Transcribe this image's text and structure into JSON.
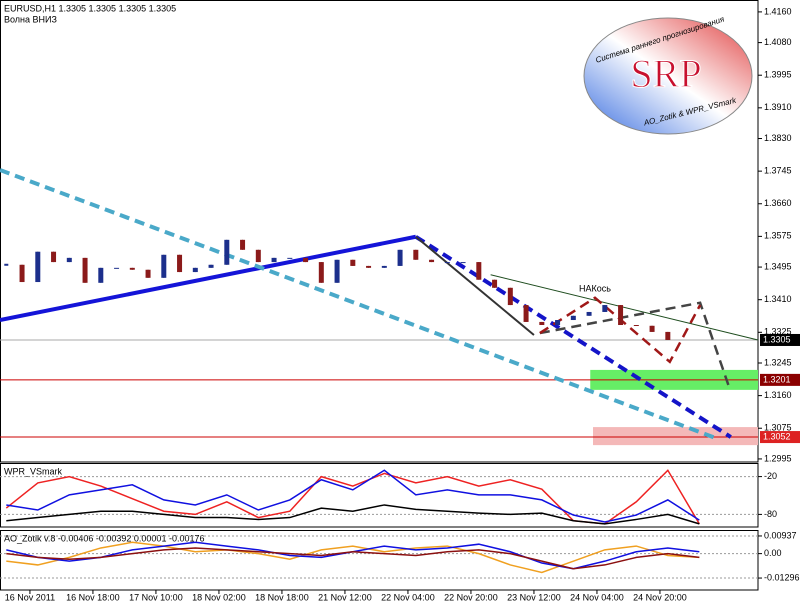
{
  "logo": {
    "arc": "Система раннего прогнозирования",
    "name": "SRP",
    "credit": "AO_Zotik & WPR_VSmark"
  },
  "chart_data": [
    {
      "type": "candlestick",
      "title": "EURUSD,H1  1.3305 1.3305 1.3305 1.3305",
      "subtitle": "Волна ВНИЗ",
      "xlim": [
        -7.6,
        184.9
      ],
      "ylim": [
        1.2987,
        1.4191
      ],
      "xticks": [
        {
          "value": 0,
          "label": "16 Nov 2011"
        },
        {
          "value": 16,
          "label": "16 Nov 18:00"
        },
        {
          "value": 32,
          "label": "17 Nov 10:00"
        },
        {
          "value": 48,
          "label": "18 Nov 02:00"
        },
        {
          "value": 64,
          "label": "18 Nov 18:00"
        },
        {
          "value": 80,
          "label": "21 Nov 12:00"
        },
        {
          "value": 96,
          "label": "22 Nov 04:00"
        },
        {
          "value": 112,
          "label": "22 Nov 20:00"
        },
        {
          "value": 128,
          "label": "23 Nov 12:00"
        },
        {
          "value": 144,
          "label": "24 Nov 04:00"
        },
        {
          "value": 160,
          "label": "24 Nov 20:00"
        }
      ],
      "yticks": [
        {
          "value": 1.416,
          "label": "1.4160"
        },
        {
          "value": 1.408,
          "label": "1.4080"
        },
        1.3995,
        {
          "value": 1.391,
          "label": "1.3910"
        },
        {
          "value": 1.383,
          "label": "1.3830"
        },
        1.3745,
        {
          "value": 1.366,
          "label": "1.3660"
        },
        1.3575,
        1.3495,
        {
          "value": 1.341,
          "label": "1.3410"
        },
        1.3325,
        1.3245,
        {
          "value": 1.316,
          "label": "1.3160"
        },
        1.3075,
        1.2995
      ],
      "up_color": "#1c2f8c",
      "down_color": "#8b1a1a",
      "x": [
        -6,
        -2,
        2,
        6,
        10,
        14,
        18,
        22,
        26,
        30,
        34,
        38,
        42,
        46,
        50,
        54,
        58,
        62,
        66,
        70,
        74,
        78,
        82,
        86,
        90,
        94,
        98,
        102,
        106,
        110,
        114,
        118,
        122,
        126,
        130,
        134,
        138,
        142,
        146,
        150,
        154,
        158,
        162
      ],
      "values": [
        1.3501,
        1.3456,
        1.3535,
        1.3508,
        1.3519,
        1.3454,
        1.3493,
        1.3493,
        1.3488,
        1.3467,
        1.3527,
        1.3482,
        1.3493,
        1.3501,
        1.3566,
        1.354,
        1.3508,
        1.3519,
        1.3519,
        1.3508,
        1.3454,
        1.3514,
        1.3498,
        1.3493,
        1.3498,
        1.354,
        1.3514,
        1.3508,
        1.3508,
        1.3508,
        1.3462,
        1.3441,
        1.3396,
        1.3352,
        1.3344,
        1.3357,
        1.3368,
        1.3378,
        1.3396,
        1.3344,
        1.3342,
        1.3326,
        1.3305
      ],
      "zones": [
        {
          "color": "#66ee66",
          "x": [
            142.3,
            184.9
          ],
          "y": [
            1.3175,
            1.3227
          ]
        },
        {
          "color": "#f4b8b8",
          "x": [
            143,
            184.9
          ],
          "y": [
            1.3031,
            1.3078
          ]
        }
      ],
      "levels": [
        {
          "value": 1.3305,
          "color": "#aaaaaa",
          "label_bg": "#000000",
          "label_color": "#ffffff"
        },
        {
          "value": 1.3201,
          "color": "#cc0000",
          "label_bg": "#8b0000",
          "label_color": "#ffffff"
        },
        {
          "value": 1.3052,
          "color": "#cc0000",
          "label_bg": "#dd2222",
          "label_color": "#ffffff"
        }
      ],
      "lines": [
        {
          "color": "#1414d8",
          "width": 4,
          "dash": false,
          "x": [
            -7.6,
            98
          ],
          "y": [
            1.3357,
            1.3574
          ]
        },
        {
          "color": "#4aa9c9",
          "width": 4,
          "dash": true,
          "x": [
            -7.6,
            174
          ],
          "y": [
            1.3748,
            1.305
          ]
        },
        {
          "color": "#1414c8",
          "width": 4,
          "dash": true,
          "x": [
            98,
            178
          ],
          "y": [
            1.3574,
            1.3052
          ]
        },
        {
          "color": "#333333",
          "width": 2,
          "dash": false,
          "x": [
            98,
            128
          ],
          "y": [
            1.3574,
            1.3318
          ]
        },
        {
          "color": "#1f4d1f",
          "width": 1,
          "dash": false,
          "x": [
            117,
            184.9
          ],
          "y": [
            1.3475,
            1.3305
          ]
        },
        {
          "color": "#444444",
          "width": 2.5,
          "dash": true,
          "x": [
            129.5,
            170.2,
            177.8
          ],
          "y": [
            1.3323,
            1.3402,
            1.3175
          ]
        },
        {
          "color": "#a01818",
          "width": 2.5,
          "dash": true,
          "x": [
            129.5,
            143.5,
            162.5,
            170.2
          ],
          "y": [
            1.3323,
            1.3415,
            1.3248,
            1.3396
          ]
        }
      ],
      "annotations": [
        {
          "text": "НАКось",
          "x": 143.5,
          "y": 1.3438
        }
      ]
    },
    {
      "type": "line",
      "title": "WPR_VSmark",
      "xlim": [
        -7.6,
        184.9
      ],
      "ylim": [
        -100,
        0
      ],
      "yticks": [
        -20,
        -80
      ],
      "x": [
        -6,
        2,
        10,
        18,
        26,
        34,
        42,
        50,
        58,
        66,
        74,
        82,
        90,
        98,
        106,
        114,
        122,
        130,
        138,
        146,
        154,
        162,
        170
      ],
      "series": [
        {
          "color": "#ee2222",
          "values": [
            -70,
            -30,
            -20,
            -35,
            -55,
            -75,
            -80,
            -60,
            -85,
            -75,
            -20,
            -35,
            -15,
            -30,
            -20,
            -35,
            -25,
            -40,
            -90,
            -95,
            -60,
            -10,
            -95
          ]
        },
        {
          "color": "#1010e0",
          "values": [
            -65,
            -73,
            -49,
            -41,
            -33,
            -57,
            -65,
            -49,
            -73,
            -57,
            -25,
            -41,
            -10,
            -49,
            -41,
            -49,
            -49,
            -57,
            -81,
            -92,
            -81,
            -57,
            -89
          ]
        },
        {
          "color": "#000000",
          "values": [
            -90,
            -85,
            -80,
            -75,
            -75,
            -80,
            -85,
            -85,
            -88,
            -85,
            -70,
            -75,
            -65,
            -72,
            -75,
            -78,
            -80,
            -78,
            -90,
            -95,
            -88,
            -80,
            -95
          ]
        }
      ]
    },
    {
      "type": "line",
      "title": "AO_Zotik v.8 -0.00406 -0.00392 0.00001 -0.00176",
      "xlim": [
        -7.6,
        184.9
      ],
      "ylim": [
        -0.0193,
        0.012
      ],
      "yticks": [
        0.00937,
        {
          "value": 0,
          "label": "0.00"
        },
        -0.01296
      ],
      "x": [
        -6,
        2,
        10,
        18,
        26,
        34,
        42,
        50,
        58,
        66,
        74,
        82,
        90,
        98,
        106,
        114,
        122,
        130,
        138,
        146,
        154,
        162,
        170
      ],
      "series": [
        {
          "color": "#f0a020",
          "values": [
            -0.004,
            -0.006,
            -0.002,
            0.003,
            0.006,
            0.004,
            0.001,
            0.002,
            0,
            -0.003,
            0.002,
            0.004,
            0.001,
            0.003,
            0.004,
            0,
            -0.006,
            -0.01,
            -0.004,
            0.002,
            0.004,
            -0.001,
            -0.002
          ]
        },
        {
          "color": "#1010e0",
          "values": [
            0.002,
            -0.002,
            -0.004,
            -0.002,
            0.002,
            0.004,
            0.006,
            0.004,
            0.002,
            -0.001,
            -0.002,
            0.001,
            0.004,
            0.002,
            0.003,
            0.005,
            0.001,
            -0.005,
            -0.008,
            -0.004,
            0.001,
            0.003,
            0.001
          ]
        },
        {
          "color": "#8b1010",
          "values": [
            0,
            -0.002,
            -0.003,
            -0.002,
            0,
            0.002,
            0.003,
            0.002,
            0.001,
            0,
            -0.001,
            0.001,
            0,
            -0.001,
            0.001,
            0.002,
            0,
            -0.004,
            -0.008,
            -0.006,
            -0.002,
            0,
            -0.002
          ]
        }
      ]
    }
  ]
}
